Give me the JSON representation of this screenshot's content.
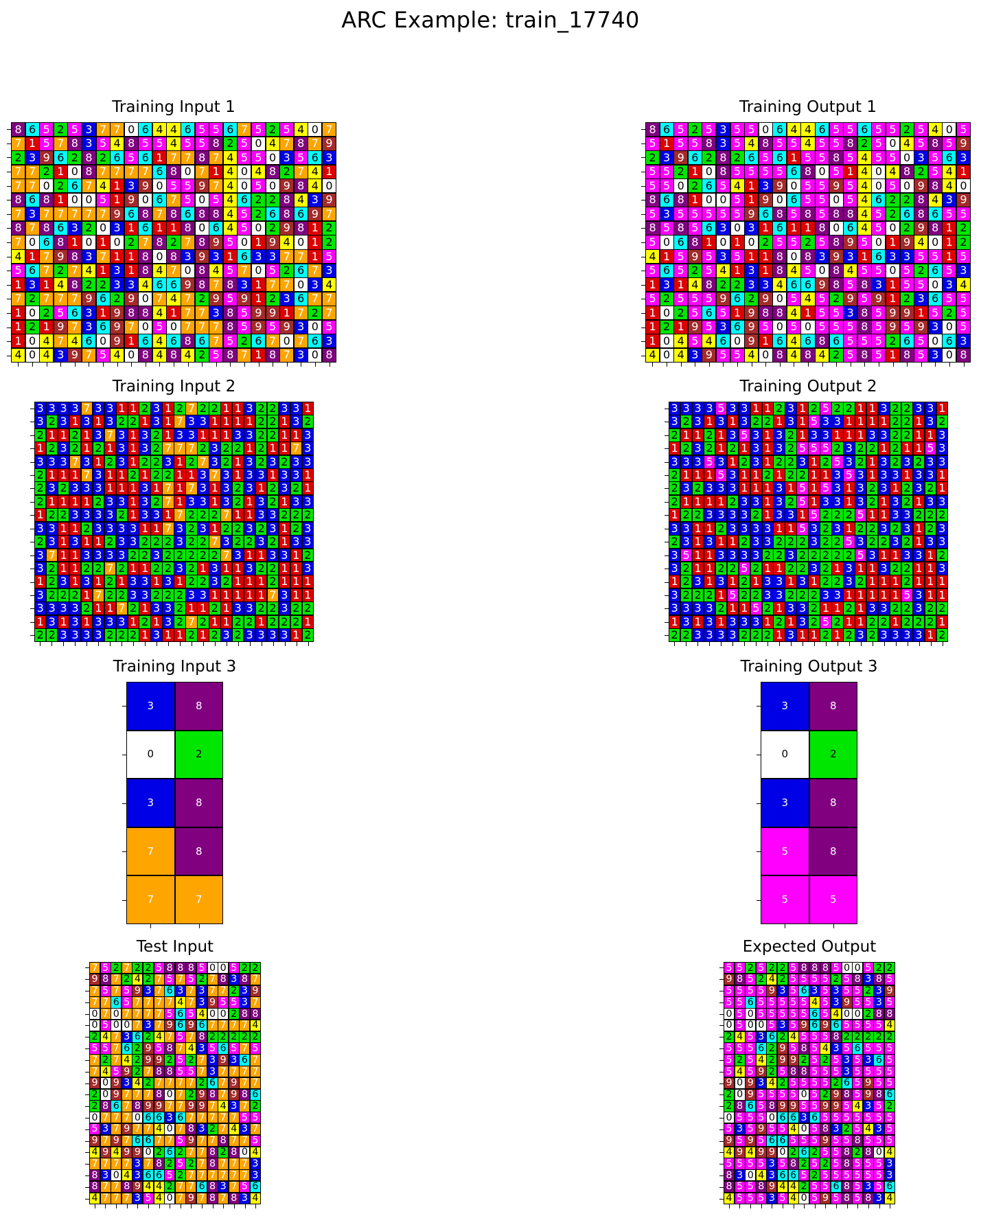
{
  "title": "ARC Example: train_17740",
  "palette": {
    "0": "#ffffff",
    "1": "#dd0000",
    "2": "#00e600",
    "3": "#0000e6",
    "4": "#ffff00",
    "5": "#ff00ff",
    "6": "#00ffff",
    "7": "#ffa500",
    "8": "#800080",
    "9": "#a52a2a"
  },
  "panels": [
    {
      "title": "Training Input 1",
      "grid": [
        "86525377064465567525407",
        "71578354855455825047879",
        "23962826561778745503563",
        "77210877776807140482741",
        "77026741390559740509840",
        "86810051906750546228439",
        "73777779687868845268697",
        "87863203161180645029812",
        "70681010278278950194012",
        "41798371180839316337715",
        "56727413184708457052673",
        "13148223346698783177034",
        "72777962907472959123677",
        "10256319884177385991727",
        "12197369705077785959305",
        "10474609164686752670763",
        "40439754084842587187308"
      ]
    },
    {
      "title": "Training Output 1",
      "grid": [
        "86525355064465565525405",
        "51558354855455825045859",
        "23962826561558545503563",
        "55210855556805140482541",
        "55026541390559540509840",
        "86810051906550546228439",
        "53555559685858845268655",
        "85856303161180645029812",
        "50681010255258950194012",
        "41595351180839316335515",
        "56525413184508455052653",
        "13148223346698583155034",
        "52555962905452959123655",
        "10256519884155385991525",
        "12195369505055585959305",
        "10454609164686555265063",
        "40439554084842585185308"
      ]
    },
    {
      "title": "Training Input 2",
      "grid": [
        "333373311231272211322331",
        "323131322131733111122132",
        "211213731321331113322113",
        "123212131327772322121173",
        "333731231223127321323233",
        "211173112122113731331331",
        "232333111317173132312321",
        "211112331327133132132133",
        "122333321331722271133222",
        "331123333117323122323123",
        "231311233222322732232133",
        "371133332232222273113312",
        "321122721122321311322113",
        "123131213313122321112111",
        "322217223322233111117311",
        "333321172133211213322322",
        "131313331213272112212221",
        "223333222131121232333312"
      ]
    },
    {
      "title": "Training Output 2",
      "grid": [
        "333353311231252211322331",
        "323131322131533111122132",
        "211213531321331113322113",
        "123212131325552322121153",
        "333531231223125321323233",
        "211153112122113531331331",
        "232333111315153132312321",
        "211112331325133132132133",
        "122333321331522251133222",
        "331123333115323122323123",
        "231311233222322532232133",
        "351133332232222253113312",
        "321122521122321311322113",
        "123131213313122321112111",
        "322215223322233111115311",
        "333321152133211213322322",
        "131313331213252112212221",
        "223333222131121232333312"
      ]
    },
    {
      "title": "Training Input 3",
      "grid": [
        "38",
        "02",
        "38",
        "78",
        "77"
      ]
    },
    {
      "title": "Training Output 3",
      "grid": [
        "38",
        "02",
        "38",
        "58",
        "55"
      ]
    },
    {
      "title": "Test Input",
      "grid": [
        "7527225888500522",
        "9872427575278387",
        "7575937637377239",
        "7765777747395537",
        "0707777565400288",
        "0500737969677774",
        "2473624757822222",
        "5576295874356575",
        "7274299252739367",
        "7459278855737777",
        "9093427777267977",
        "2097778072987986",
        "2867899779974372",
        "0777066367777755",
        "5379774078327437",
        "9797667759778775",
        "4949902627782804",
        "7777378252787773",
        "8304366527777773",
        "8778944277683756",
        "4777354079787834"
      ]
    },
    {
      "title": "Expected Output",
      "grid": [
        "5525225888500522",
        "9852425555258385",
        "5555935635355239",
        "5565555545395535",
        "0505555565400288",
        "0500535969655554",
        "2453624555822222",
        "5556295854356555",
        "5254299252535365",
        "5459258855535555",
        "9093425555265955",
        "2095555052985986",
        "2865899559954352",
        "0555066365555555",
        "5359554058325435",
        "9595665559558555",
        "4949902625582804",
        "5555358252585553",
        "8304366525555553",
        "8558944255685356",
        "4555354059585834"
      ]
    }
  ]
}
